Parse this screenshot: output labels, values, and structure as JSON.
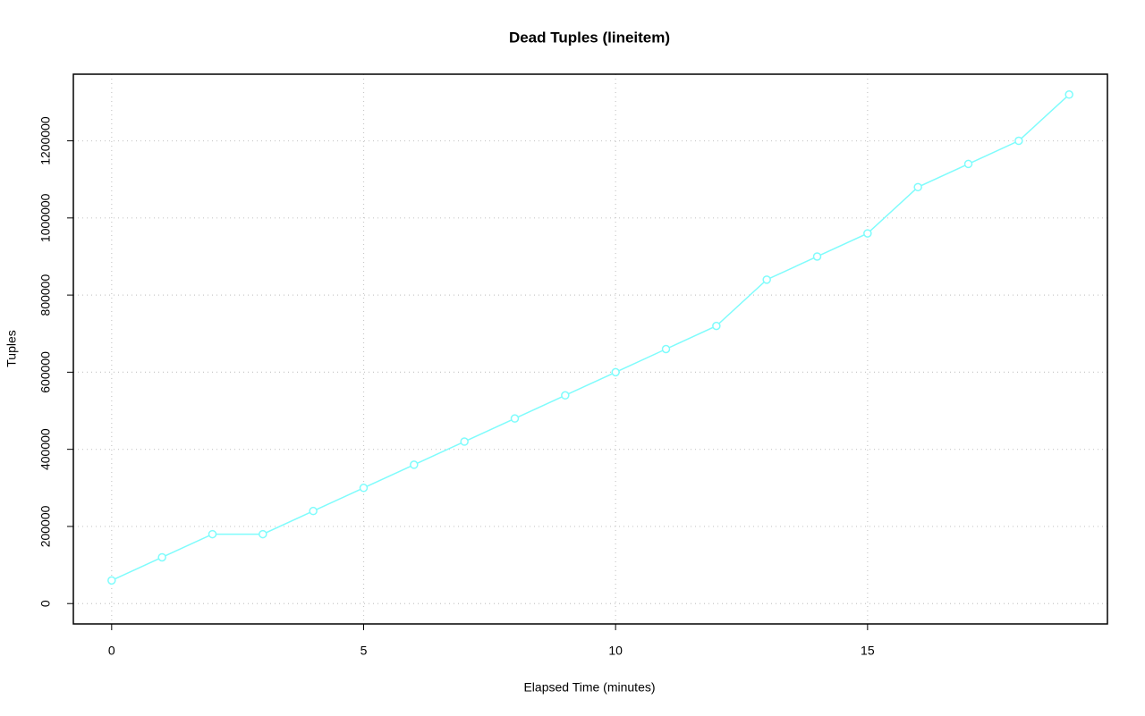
{
  "chart_data": {
    "type": "line",
    "title": "Dead Tuples (lineitem)",
    "x_label": "Elapsed Time (minutes)",
    "y_label": "Tuples",
    "x": [
      0,
      1,
      2,
      3,
      4,
      5,
      6,
      7,
      8,
      9,
      10,
      11,
      12,
      13,
      14,
      15,
      16,
      17,
      18,
      19
    ],
    "series": [
      {
        "color": "#7ffcfc",
        "values": [
          60000,
          120000,
          180000,
          180000,
          240000,
          300000,
          360000,
          420000,
          480000,
          540000,
          600000,
          660000,
          720000,
          840000,
          900000,
          960000,
          1080000,
          1140000,
          1200000,
          1320000
        ]
      }
    ],
    "xlim": [
      -0.76,
      19.76
    ],
    "xticks": [
      0,
      5,
      10,
      15
    ],
    "ylim": [
      -52800,
      1372800
    ],
    "yticks": [
      0,
      200000,
      400000,
      600000,
      800000,
      1000000,
      1200000
    ],
    "grid": true,
    "markers": "open-circle"
  }
}
